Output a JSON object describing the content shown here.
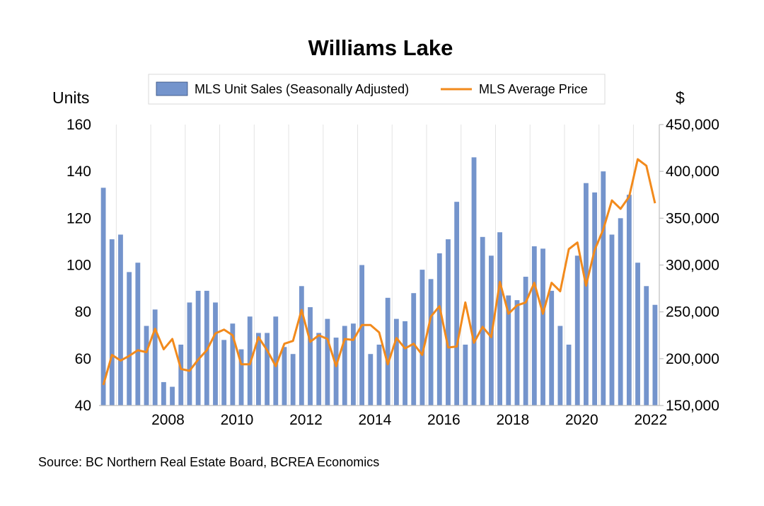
{
  "chart_data": {
    "type": "bar+line",
    "title": "Williams Lake",
    "source": "Source:  BC Northern Real Estate Board, BCREA Economics",
    "left_axis": {
      "label": "Units",
      "ylim": [
        40,
        160
      ],
      "ticks": [
        "40",
        "60",
        "80",
        "100",
        "120",
        "140",
        "160"
      ]
    },
    "right_axis": {
      "label": "$",
      "ylim": [
        150000,
        450000
      ],
      "ticks": [
        "150,000",
        "200,000",
        "250,000",
        "300,000",
        "350,000",
        "400,000",
        "450,000"
      ]
    },
    "x_axis": {
      "start": 2006.5,
      "end": 2022.75,
      "ticks": [
        "2008",
        "2010",
        "2012",
        "2014",
        "2016",
        "2018",
        "2020",
        "2022"
      ]
    },
    "grid": "vertical",
    "legend": {
      "placement": "top-center"
    },
    "quarters": [
      "2006Q3",
      "2006Q4",
      "2007Q1",
      "2007Q2",
      "2007Q3",
      "2007Q4",
      "2008Q1",
      "2008Q2",
      "2008Q3",
      "2008Q4",
      "2009Q1",
      "2009Q2",
      "2009Q3",
      "2009Q4",
      "2010Q1",
      "2010Q2",
      "2010Q3",
      "2010Q4",
      "2011Q1",
      "2011Q2",
      "2011Q3",
      "2011Q4",
      "2012Q1",
      "2012Q2",
      "2012Q3",
      "2012Q4",
      "2013Q1",
      "2013Q2",
      "2013Q3",
      "2013Q4",
      "2014Q1",
      "2014Q2",
      "2014Q3",
      "2014Q4",
      "2015Q1",
      "2015Q2",
      "2015Q3",
      "2015Q4",
      "2016Q1",
      "2016Q2",
      "2016Q3",
      "2016Q4",
      "2017Q1",
      "2017Q2",
      "2017Q3",
      "2017Q4",
      "2018Q1",
      "2018Q2",
      "2018Q3",
      "2018Q4",
      "2019Q1",
      "2019Q2",
      "2019Q3",
      "2019Q4",
      "2020Q1",
      "2020Q2",
      "2020Q3",
      "2020Q4",
      "2021Q1",
      "2021Q2",
      "2021Q3",
      "2021Q4",
      "2022Q1",
      "2022Q2",
      "2022Q3"
    ],
    "series": [
      {
        "name": "MLS Unit Sales (Seasonally Adjusted)",
        "type": "bar",
        "axis": "left",
        "color": "#7494CC",
        "values": [
          133,
          111,
          113,
          97,
          101,
          74,
          81,
          50,
          48,
          66,
          84,
          89,
          89,
          84,
          68,
          75,
          64,
          78,
          71,
          71,
          78,
          65,
          62,
          91,
          82,
          71,
          77,
          69,
          74,
          75,
          100,
          62,
          66,
          86,
          77,
          76,
          88,
          98,
          94,
          105,
          111,
          127,
          66,
          146,
          112,
          104,
          114,
          87,
          85,
          95,
          108,
          107,
          89,
          74,
          66,
          104,
          135,
          131,
          140,
          113,
          120,
          130,
          101,
          91,
          83
        ]
      },
      {
        "name": "MLS Average Price",
        "type": "line",
        "axis": "right",
        "color": "#F28A1C",
        "values": [
          172000,
          204000,
          198000,
          203000,
          209000,
          207000,
          232000,
          210000,
          221000,
          189000,
          187000,
          199000,
          209000,
          227000,
          231000,
          225000,
          194000,
          194000,
          223000,
          209000,
          192000,
          216000,
          219000,
          252000,
          218000,
          225000,
          221000,
          192000,
          221000,
          220000,
          236000,
          236000,
          228000,
          194000,
          222000,
          211000,
          216000,
          204000,
          245000,
          256000,
          212000,
          213000,
          260000,
          217000,
          234000,
          223000,
          282000,
          248000,
          257000,
          260000,
          281000,
          248000,
          281000,
          272000,
          317000,
          324000,
          278000,
          316000,
          338000,
          369000,
          360000,
          373000,
          413000,
          406000,
          366000
        ]
      }
    ]
  }
}
